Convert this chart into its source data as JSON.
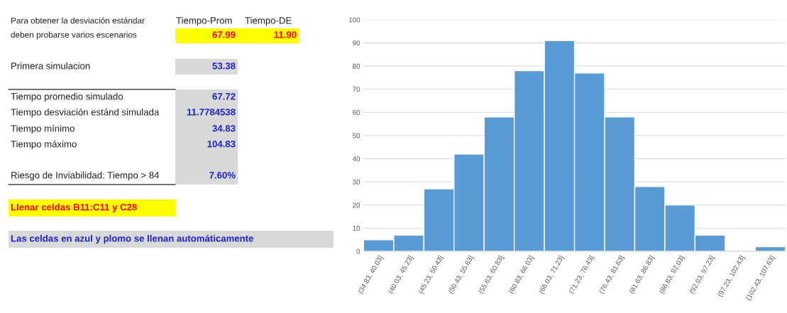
{
  "chart_data": [
    {
      "type": "other",
      "annotations": [
        "Para obtener la desviación estándar",
        "Tiempo-Prom",
        "Tiempo-DE",
        "deben probarse varios escenarios",
        "67.99",
        "11.90",
        "Primera simulacion",
        "53.38",
        "Tiempo promedio simulado",
        "67.72",
        "Tiempo desviación estánd simulada",
        "11.7784538",
        "Tiempo mínimo",
        "34.83",
        "Tiempo máximo",
        "104.83",
        "Riesgo de Inviabilidad: Tiempo > 84",
        "7.60%",
        "Llenar celdas B11:C11 y C28",
        "Las celdas en azul y plomo se llenan automáticamente"
      ]
    },
    {
      "type": "bar",
      "categories": [
        "(34.83, 40.03]",
        "(40.03, 45.23]",
        "(45.23, 50.43]",
        "(50.43, 55.63]",
        "(55.63, 60.83]",
        "(60.83, 66.03]",
        "(66.03, 71.23]",
        "(71.23, 76.43]",
        "(76.43, 81.63]",
        "(81.63, 86.83]",
        "(86.83, 92.03]",
        "(92.03, 97.23]",
        "(97.23, 102.43]",
        "(102.43, 107.63]"
      ],
      "values": [
        5,
        7,
        27,
        42,
        58,
        78,
        91,
        77,
        58,
        28,
        20,
        7,
        0,
        2
      ],
      "color": "#5b9bd5",
      "ylim": [
        0,
        100
      ],
      "yticks": [
        0,
        10,
        20,
        30,
        40,
        50,
        60,
        70,
        80,
        90,
        100
      ],
      "grid": "y"
    }
  ]
}
